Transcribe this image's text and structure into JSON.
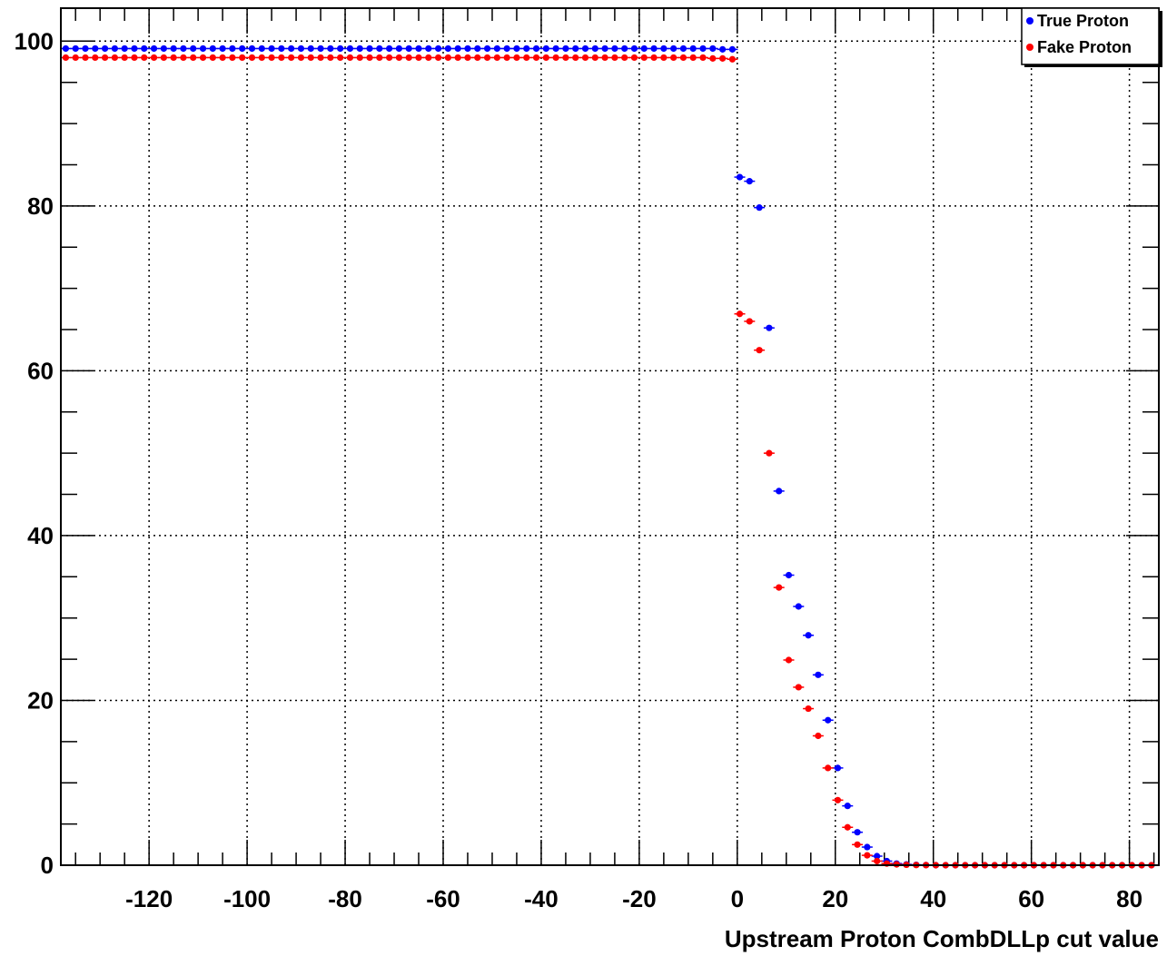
{
  "chart_data": {
    "type": "scatter",
    "xlabel": "Upstream Proton CombDLLp cut value",
    "ylabel": "",
    "title": "",
    "xlim": [
      -138,
      86
    ],
    "ylim": [
      0,
      104
    ],
    "xticks": [
      -120,
      -100,
      -80,
      -60,
      -40,
      -20,
      0,
      20,
      40,
      60,
      80
    ],
    "yticks": [
      0,
      20,
      40,
      60,
      80,
      100
    ],
    "grid": true,
    "legend_position": "top-right",
    "series": [
      {
        "name": "True Proton",
        "color": "#0000ff",
        "points": [
          [
            -137,
            99.1
          ],
          [
            -135,
            99.1
          ],
          [
            -133,
            99.1
          ],
          [
            -131,
            99.1
          ],
          [
            -129,
            99.1
          ],
          [
            -127,
            99.1
          ],
          [
            -125,
            99.1
          ],
          [
            -123,
            99.1
          ],
          [
            -121,
            99.1
          ],
          [
            -119,
            99.1
          ],
          [
            -117,
            99.1
          ],
          [
            -115,
            99.1
          ],
          [
            -113,
            99.1
          ],
          [
            -111,
            99.1
          ],
          [
            -109,
            99.1
          ],
          [
            -107,
            99.1
          ],
          [
            -105,
            99.1
          ],
          [
            -103,
            99.1
          ],
          [
            -101,
            99.1
          ],
          [
            -99,
            99.1
          ],
          [
            -97,
            99.1
          ],
          [
            -95,
            99.1
          ],
          [
            -93,
            99.1
          ],
          [
            -91,
            99.1
          ],
          [
            -89,
            99.1
          ],
          [
            -87,
            99.1
          ],
          [
            -85,
            99.1
          ],
          [
            -83,
            99.1
          ],
          [
            -81,
            99.1
          ],
          [
            -79,
            99.1
          ],
          [
            -77,
            99.1
          ],
          [
            -75,
            99.1
          ],
          [
            -73,
            99.1
          ],
          [
            -71,
            99.1
          ],
          [
            -69,
            99.1
          ],
          [
            -67,
            99.1
          ],
          [
            -65,
            99.1
          ],
          [
            -63,
            99.1
          ],
          [
            -61,
            99.1
          ],
          [
            -59,
            99.1
          ],
          [
            -57,
            99.1
          ],
          [
            -55,
            99.1
          ],
          [
            -53,
            99.1
          ],
          [
            -51,
            99.1
          ],
          [
            -49,
            99.1
          ],
          [
            -47,
            99.1
          ],
          [
            -45,
            99.1
          ],
          [
            -43,
            99.1
          ],
          [
            -41,
            99.1
          ],
          [
            -39,
            99.1
          ],
          [
            -37,
            99.1
          ],
          [
            -35,
            99.1
          ],
          [
            -33,
            99.1
          ],
          [
            -31,
            99.1
          ],
          [
            -29,
            99.1
          ],
          [
            -27,
            99.1
          ],
          [
            -25,
            99.1
          ],
          [
            -23,
            99.1
          ],
          [
            -21,
            99.1
          ],
          [
            -19,
            99.1
          ],
          [
            -17,
            99.1
          ],
          [
            -15,
            99.1
          ],
          [
            -13,
            99.1
          ],
          [
            -11,
            99.1
          ],
          [
            -9,
            99.1
          ],
          [
            -7,
            99.1
          ],
          [
            -5,
            99.1
          ],
          [
            -3,
            99.0
          ],
          [
            -1,
            99.0
          ],
          [
            0.5,
            83.5
          ],
          [
            2.5,
            83.0
          ],
          [
            4.5,
            79.8
          ],
          [
            6.5,
            65.2
          ],
          [
            8.5,
            45.4
          ],
          [
            10.5,
            35.2
          ],
          [
            12.5,
            31.4
          ],
          [
            14.5,
            27.9
          ],
          [
            16.5,
            23.1
          ],
          [
            18.5,
            17.6
          ],
          [
            20.5,
            11.8
          ],
          [
            22.5,
            7.2
          ],
          [
            24.5,
            4.0
          ],
          [
            26.5,
            2.2
          ],
          [
            28.5,
            1.1
          ],
          [
            30.5,
            0.5
          ],
          [
            32.5,
            0.2
          ],
          [
            34.5,
            0.1
          ],
          [
            36.5,
            0.05
          ],
          [
            38.5,
            0.02
          ],
          [
            40.5,
            0.0
          ],
          [
            42.5,
            0.0
          ],
          [
            44.5,
            0.0
          ],
          [
            46.5,
            0.0
          ],
          [
            48.5,
            0.0
          ],
          [
            50.5,
            0.0
          ],
          [
            52.5,
            0.0
          ],
          [
            54.5,
            0.0
          ],
          [
            56.5,
            0.0
          ],
          [
            58.5,
            0.0
          ],
          [
            60.5,
            0.0
          ],
          [
            62.5,
            0.0
          ],
          [
            64.5,
            0.0
          ],
          [
            66.5,
            0.0
          ],
          [
            68.5,
            0.0
          ],
          [
            70.5,
            0.0
          ],
          [
            72.5,
            0.0
          ],
          [
            74.5,
            0.0
          ],
          [
            76.5,
            0.0
          ],
          [
            78.5,
            0.0
          ],
          [
            80.5,
            0.0
          ],
          [
            82.5,
            0.0
          ],
          [
            84.5,
            0.0
          ]
        ]
      },
      {
        "name": "Fake Proton",
        "color": "#ff0000",
        "points": [
          [
            -137,
            98.0
          ],
          [
            -135,
            98.0
          ],
          [
            -133,
            98.0
          ],
          [
            -131,
            98.0
          ],
          [
            -129,
            98.0
          ],
          [
            -127,
            98.0
          ],
          [
            -125,
            98.0
          ],
          [
            -123,
            98.0
          ],
          [
            -121,
            98.0
          ],
          [
            -119,
            98.0
          ],
          [
            -117,
            98.0
          ],
          [
            -115,
            98.0
          ],
          [
            -113,
            98.0
          ],
          [
            -111,
            98.0
          ],
          [
            -109,
            98.0
          ],
          [
            -107,
            98.0
          ],
          [
            -105,
            98.0
          ],
          [
            -103,
            98.0
          ],
          [
            -101,
            98.0
          ],
          [
            -99,
            98.0
          ],
          [
            -97,
            98.0
          ],
          [
            -95,
            98.0
          ],
          [
            -93,
            98.0
          ],
          [
            -91,
            98.0
          ],
          [
            -89,
            98.0
          ],
          [
            -87,
            98.0
          ],
          [
            -85,
            98.0
          ],
          [
            -83,
            98.0
          ],
          [
            -81,
            98.0
          ],
          [
            -79,
            98.0
          ],
          [
            -77,
            98.0
          ],
          [
            -75,
            98.0
          ],
          [
            -73,
            98.0
          ],
          [
            -71,
            98.0
          ],
          [
            -69,
            98.0
          ],
          [
            -67,
            98.0
          ],
          [
            -65,
            98.0
          ],
          [
            -63,
            98.0
          ],
          [
            -61,
            98.0
          ],
          [
            -59,
            98.0
          ],
          [
            -57,
            98.0
          ],
          [
            -55,
            98.0
          ],
          [
            -53,
            98.0
          ],
          [
            -51,
            98.0
          ],
          [
            -49,
            98.0
          ],
          [
            -47,
            98.0
          ],
          [
            -45,
            98.0
          ],
          [
            -43,
            98.0
          ],
          [
            -41,
            98.0
          ],
          [
            -39,
            98.0
          ],
          [
            -37,
            98.0
          ],
          [
            -35,
            98.0
          ],
          [
            -33,
            98.0
          ],
          [
            -31,
            98.0
          ],
          [
            -29,
            98.0
          ],
          [
            -27,
            98.0
          ],
          [
            -25,
            98.0
          ],
          [
            -23,
            98.0
          ],
          [
            -21,
            98.0
          ],
          [
            -19,
            98.0
          ],
          [
            -17,
            98.0
          ],
          [
            -15,
            98.0
          ],
          [
            -13,
            98.0
          ],
          [
            -11,
            98.0
          ],
          [
            -9,
            98.0
          ],
          [
            -7,
            98.0
          ],
          [
            -5,
            97.9
          ],
          [
            -3,
            97.9
          ],
          [
            -1,
            97.8
          ],
          [
            0.5,
            66.9
          ],
          [
            2.5,
            66.0
          ],
          [
            4.5,
            62.5
          ],
          [
            6.5,
            50.0
          ],
          [
            8.5,
            33.7
          ],
          [
            10.5,
            24.9
          ],
          [
            12.5,
            21.6
          ],
          [
            14.5,
            19.0
          ],
          [
            16.5,
            15.7
          ],
          [
            18.5,
            11.8
          ],
          [
            20.5,
            7.9
          ],
          [
            22.5,
            4.6
          ],
          [
            24.5,
            2.5
          ],
          [
            26.5,
            1.2
          ],
          [
            28.5,
            0.5
          ],
          [
            30.5,
            0.2
          ],
          [
            32.5,
            0.1
          ],
          [
            34.5,
            0.05
          ],
          [
            36.5,
            0.02
          ],
          [
            38.5,
            0.01
          ],
          [
            40.5,
            0.0
          ],
          [
            42.5,
            0.0
          ],
          [
            44.5,
            0.0
          ],
          [
            46.5,
            0.0
          ],
          [
            48.5,
            0.0
          ],
          [
            50.5,
            0.0
          ],
          [
            52.5,
            0.0
          ],
          [
            54.5,
            0.0
          ],
          [
            56.5,
            0.0
          ],
          [
            58.5,
            0.0
          ],
          [
            60.5,
            0.0
          ],
          [
            62.5,
            0.0
          ],
          [
            64.5,
            0.0
          ],
          [
            66.5,
            0.0
          ],
          [
            68.5,
            0.0
          ],
          [
            70.5,
            0.0
          ],
          [
            72.5,
            0.0
          ],
          [
            74.5,
            0.0
          ],
          [
            76.5,
            0.0
          ],
          [
            78.5,
            0.0
          ],
          [
            80.5,
            0.0
          ],
          [
            82.5,
            0.0
          ],
          [
            84.5,
            0.0
          ]
        ]
      }
    ]
  }
}
